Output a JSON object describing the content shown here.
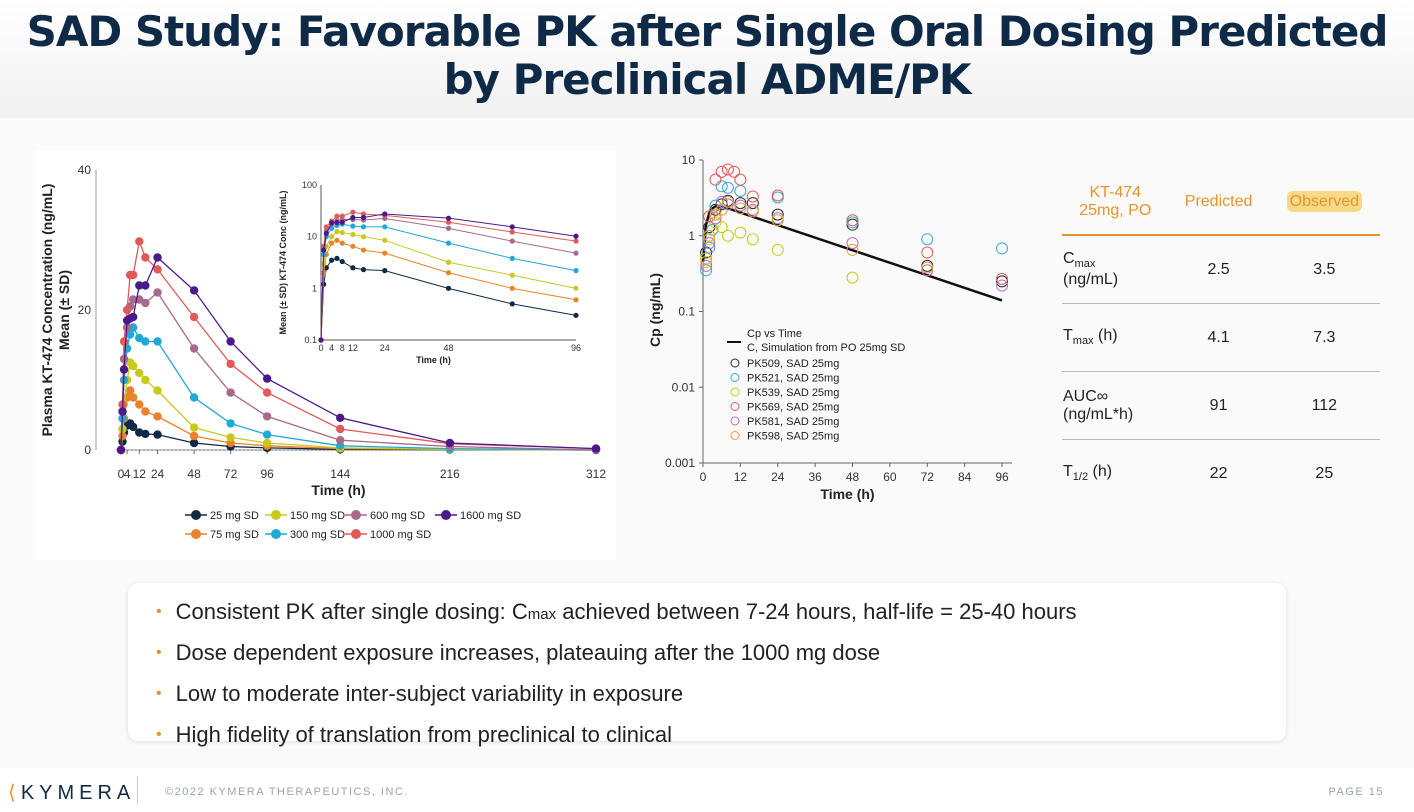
{
  "title": "SAD Study: Favorable PK after Single Oral Dosing Predicted by Preclinical ADME/PK",
  "colors": {
    "accent": "#e8932a",
    "navy": "#0f2a46"
  },
  "chart_data": [
    {
      "type": "line",
      "title": "",
      "xlabel": "Time (h)",
      "ylabel": "Plasma KT-474 Concentration (ng/mL) Mean (± SD)",
      "xticks": [
        "0",
        "4",
        "12",
        "24",
        "48",
        "72",
        "96",
        "144",
        "216",
        "312"
      ],
      "yticks": [
        "0",
        "20",
        "40"
      ],
      "ylim": [
        0,
        40
      ],
      "x": [
        0,
        1,
        2,
        4,
        6,
        8,
        12,
        16,
        24,
        48,
        72,
        96,
        144,
        216,
        312
      ],
      "series": [
        {
          "name": "25 mg SD",
          "color": "#0f2a46",
          "values": [
            0,
            1.2,
            2.5,
            3.5,
            3.8,
            3.3,
            2.5,
            2.3,
            2.2,
            1.0,
            0.5,
            0.3,
            0.1,
            0.05,
            0
          ]
        },
        {
          "name": "75 mg SD",
          "color": "#e8832a",
          "values": [
            0,
            2.0,
            4.5,
            7.5,
            8.5,
            7.5,
            6.5,
            5.5,
            4.8,
            2.0,
            1.0,
            0.6,
            0.2,
            0.1,
            0
          ]
        },
        {
          "name": "150 mg SD",
          "color": "#c8c81e",
          "values": [
            0,
            3.0,
            6.5,
            10.0,
            12.5,
            12.0,
            11.0,
            10.0,
            8.5,
            3.2,
            1.8,
            1.0,
            0.3,
            0.1,
            0
          ]
        },
        {
          "name": "300 mg SD",
          "color": "#1fa8d8",
          "values": [
            0,
            4.5,
            10.0,
            14.5,
            16.5,
            17.5,
            16.0,
            15.5,
            15.5,
            7.5,
            3.8,
            2.2,
            0.6,
            0.2,
            0
          ]
        },
        {
          "name": "600 mg SD",
          "color": "#a86a8a",
          "values": [
            0,
            5.5,
            13.0,
            17.5,
            20.5,
            21.5,
            21.5,
            21.0,
            22.5,
            14.5,
            8.2,
            4.8,
            1.4,
            0.5,
            0
          ]
        },
        {
          "name": "1000 mg SD",
          "color": "#e05a5a",
          "values": [
            0,
            6.5,
            15.5,
            20.0,
            25.0,
            25.0,
            29.8,
            27.5,
            25.8,
            19.0,
            12.3,
            8.2,
            3.0,
            0.9,
            0.2
          ]
        },
        {
          "name": "1600 mg SD",
          "color": "#4b1a8a",
          "values": [
            0,
            5.5,
            11.5,
            18.5,
            18.8,
            19.0,
            23.5,
            23.5,
            27.5,
            22.8,
            15.5,
            10.2,
            4.6,
            1.0,
            0.2
          ]
        }
      ],
      "inset": {
        "ylabel": "Mean (± SD) KT-474 Conc (ng/mL)",
        "xlabel": "Time (h)",
        "yscale": "log",
        "yticks": [
          "0.1",
          "1",
          "10",
          "100"
        ],
        "xticks": [
          "0",
          "4",
          "8",
          "12",
          "24",
          "48",
          "96"
        ]
      }
    },
    {
      "type": "scatter",
      "xlabel": "Time (h)",
      "ylabel": "Cp (ng/mL)",
      "yscale": "log",
      "ylim": [
        0.001,
        10
      ],
      "yticks": [
        "0.001",
        "0.01",
        "0.1",
        "1",
        "10"
      ],
      "xticks": [
        "0",
        "12",
        "24",
        "36",
        "48",
        "60",
        "72",
        "84",
        "96"
      ],
      "simulation": {
        "name": "Cp vs Time",
        "subtitle": "C, Simulation from PO 25mg SD",
        "x": [
          0,
          1,
          2,
          3,
          4,
          6,
          8,
          96
        ],
        "y": [
          0.45,
          1.4,
          2.0,
          2.3,
          2.45,
          2.4,
          2.3,
          0.14
        ]
      },
      "series": [
        {
          "name": "PK509, SAD 25mg",
          "color": "#2a2a2a",
          "x": [
            1,
            2,
            4,
            6,
            8,
            12,
            16,
            24,
            48,
            72,
            96
          ],
          "y": [
            0.6,
            1.3,
            2.2,
            2.6,
            2.9,
            2.7,
            2.7,
            1.9,
            1.4,
            0.4,
            0.25
          ]
        },
        {
          "name": "PK521, SAD 25mg",
          "color": "#3aa8d8",
          "x": [
            1,
            2,
            3,
            4,
            6,
            8,
            12,
            24,
            48,
            72,
            96
          ],
          "y": [
            0.35,
            0.7,
            1.2,
            2.5,
            4.5,
            4.3,
            3.9,
            3.2,
            1.5,
            0.9,
            0.68
          ]
        },
        {
          "name": "PK539, SAD 25mg",
          "color": "#c8c81e",
          "x": [
            1,
            2,
            4,
            6,
            8,
            12,
            16,
            24,
            48
          ],
          "y": [
            0.45,
            0.9,
            1.5,
            1.3,
            1.0,
            1.1,
            0.9,
            0.65,
            0.28
          ]
        },
        {
          "name": "PK569, SAD 25mg",
          "color": "#e05a5a",
          "x": [
            2,
            4,
            6,
            8,
            10,
            12,
            16,
            24,
            48,
            72,
            96
          ],
          "y": [
            1.8,
            5.5,
            7.0,
            7.5,
            7.0,
            5.5,
            3.3,
            3.4,
            1.6,
            0.6,
            0.27
          ]
        },
        {
          "name": "PK581, SAD 25mg",
          "color": "#b070c8",
          "x": [
            1,
            2,
            4,
            6,
            8,
            12,
            16,
            24,
            48,
            72,
            96
          ],
          "y": [
            0.4,
            0.8,
            1.7,
            2.8,
            2.6,
            2.5,
            2.2,
            1.7,
            0.8,
            0.35,
            0.22
          ]
        },
        {
          "name": "PK598, SAD 25mg",
          "color": "#e8a030",
          "x": [
            1,
            2,
            4,
            6,
            8,
            12,
            16,
            24,
            48,
            72
          ],
          "y": [
            0.5,
            1.0,
            1.9,
            2.2,
            2.8,
            2.3,
            2.1,
            1.6,
            0.65,
            0.38
          ]
        }
      ]
    }
  ],
  "table": {
    "header": {
      "col1_line1": "KT-474",
      "col1_line2": "25mg, PO",
      "col2": "Predicted",
      "col3": "Observed"
    },
    "rows": [
      {
        "param": "C",
        "sub": "max",
        "unit": "(ng/mL)",
        "predicted": "2.5",
        "observed": "3.5"
      },
      {
        "param": "T",
        "sub": "max",
        "unit": " (h)",
        "predicted": "4.1",
        "observed": "7.3"
      },
      {
        "param": "AUC∞",
        "sub": "",
        "unit": "(ng/mL*h)",
        "predicted": "91",
        "observed": "112"
      },
      {
        "param": "T",
        "sub": "1/2",
        "unit": " (h)",
        "predicted": "22",
        "observed": "25"
      }
    ]
  },
  "bullets": [
    {
      "pre": "Consistent PK after single dosing:  C",
      "sub": "max",
      "post": " achieved between 7-24 hours, half-life = 25-40 hours"
    },
    {
      "pre": "Dose dependent exposure increases, plateauing after the 1000 mg dose",
      "sub": "",
      "post": ""
    },
    {
      "pre": "Low to moderate inter-subject variability in exposure",
      "sub": "",
      "post": ""
    },
    {
      "pre": "High fidelity of translation from preclinical to clinical",
      "sub": "",
      "post": ""
    }
  ],
  "footer": {
    "logo": "KYMERA",
    "copyright": "©2022 KYMERA THERAPEUTICS, INC.",
    "page": "PAGE 15"
  }
}
